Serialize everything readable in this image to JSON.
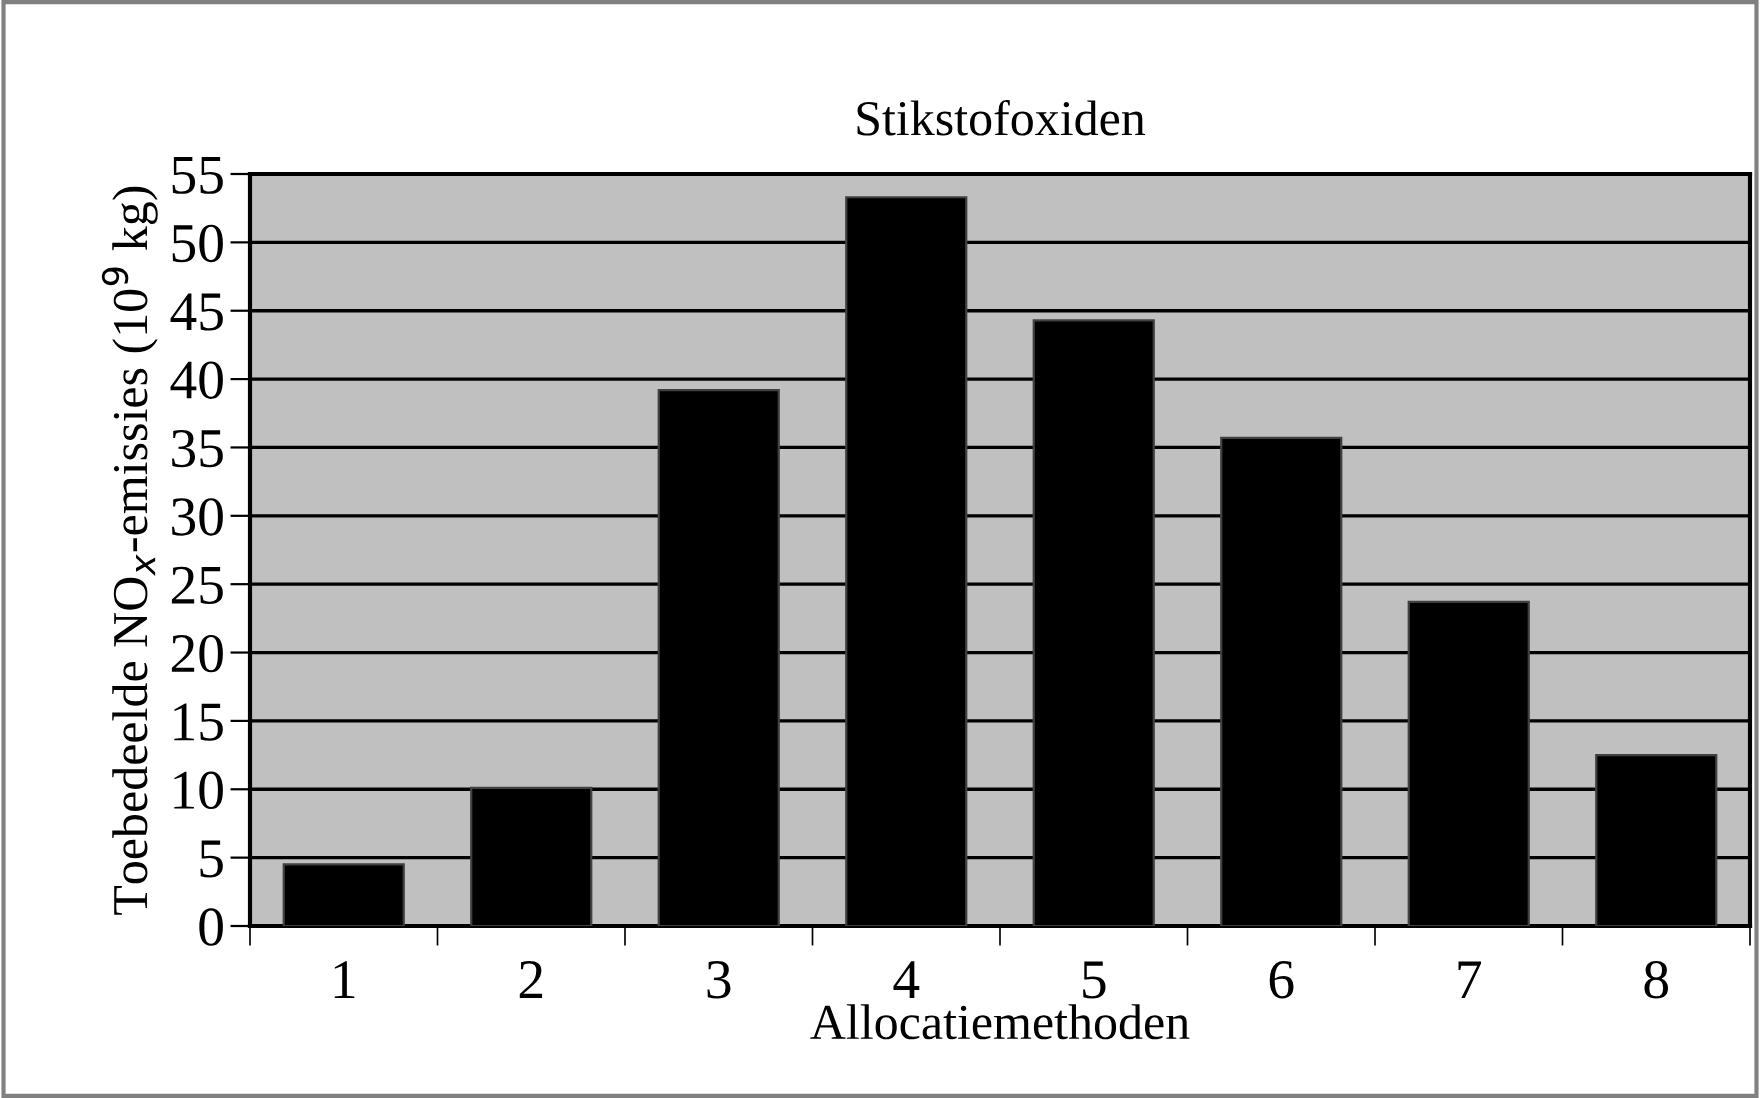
{
  "chart_data": {
    "type": "bar",
    "title": "Stikstofoxiden",
    "xlabel": "Allocatiemethoden",
    "ylabel": "Toebedeelde NO$_{x}$-emissies (10$^{9}$ kg)",
    "categories": [
      "1",
      "2",
      "3",
      "4",
      "5",
      "6",
      "7",
      "8"
    ],
    "values": [
      4.5,
      10.1,
      39.2,
      53.3,
      44.3,
      35.7,
      23.7,
      12.5
    ],
    "color": "#000000",
    "ylim": [
      0,
      55
    ],
    "yticks": [
      0,
      5,
      10,
      15,
      20,
      25,
      30,
      35,
      40,
      45,
      50,
      55
    ],
    "grid": "y"
  }
}
